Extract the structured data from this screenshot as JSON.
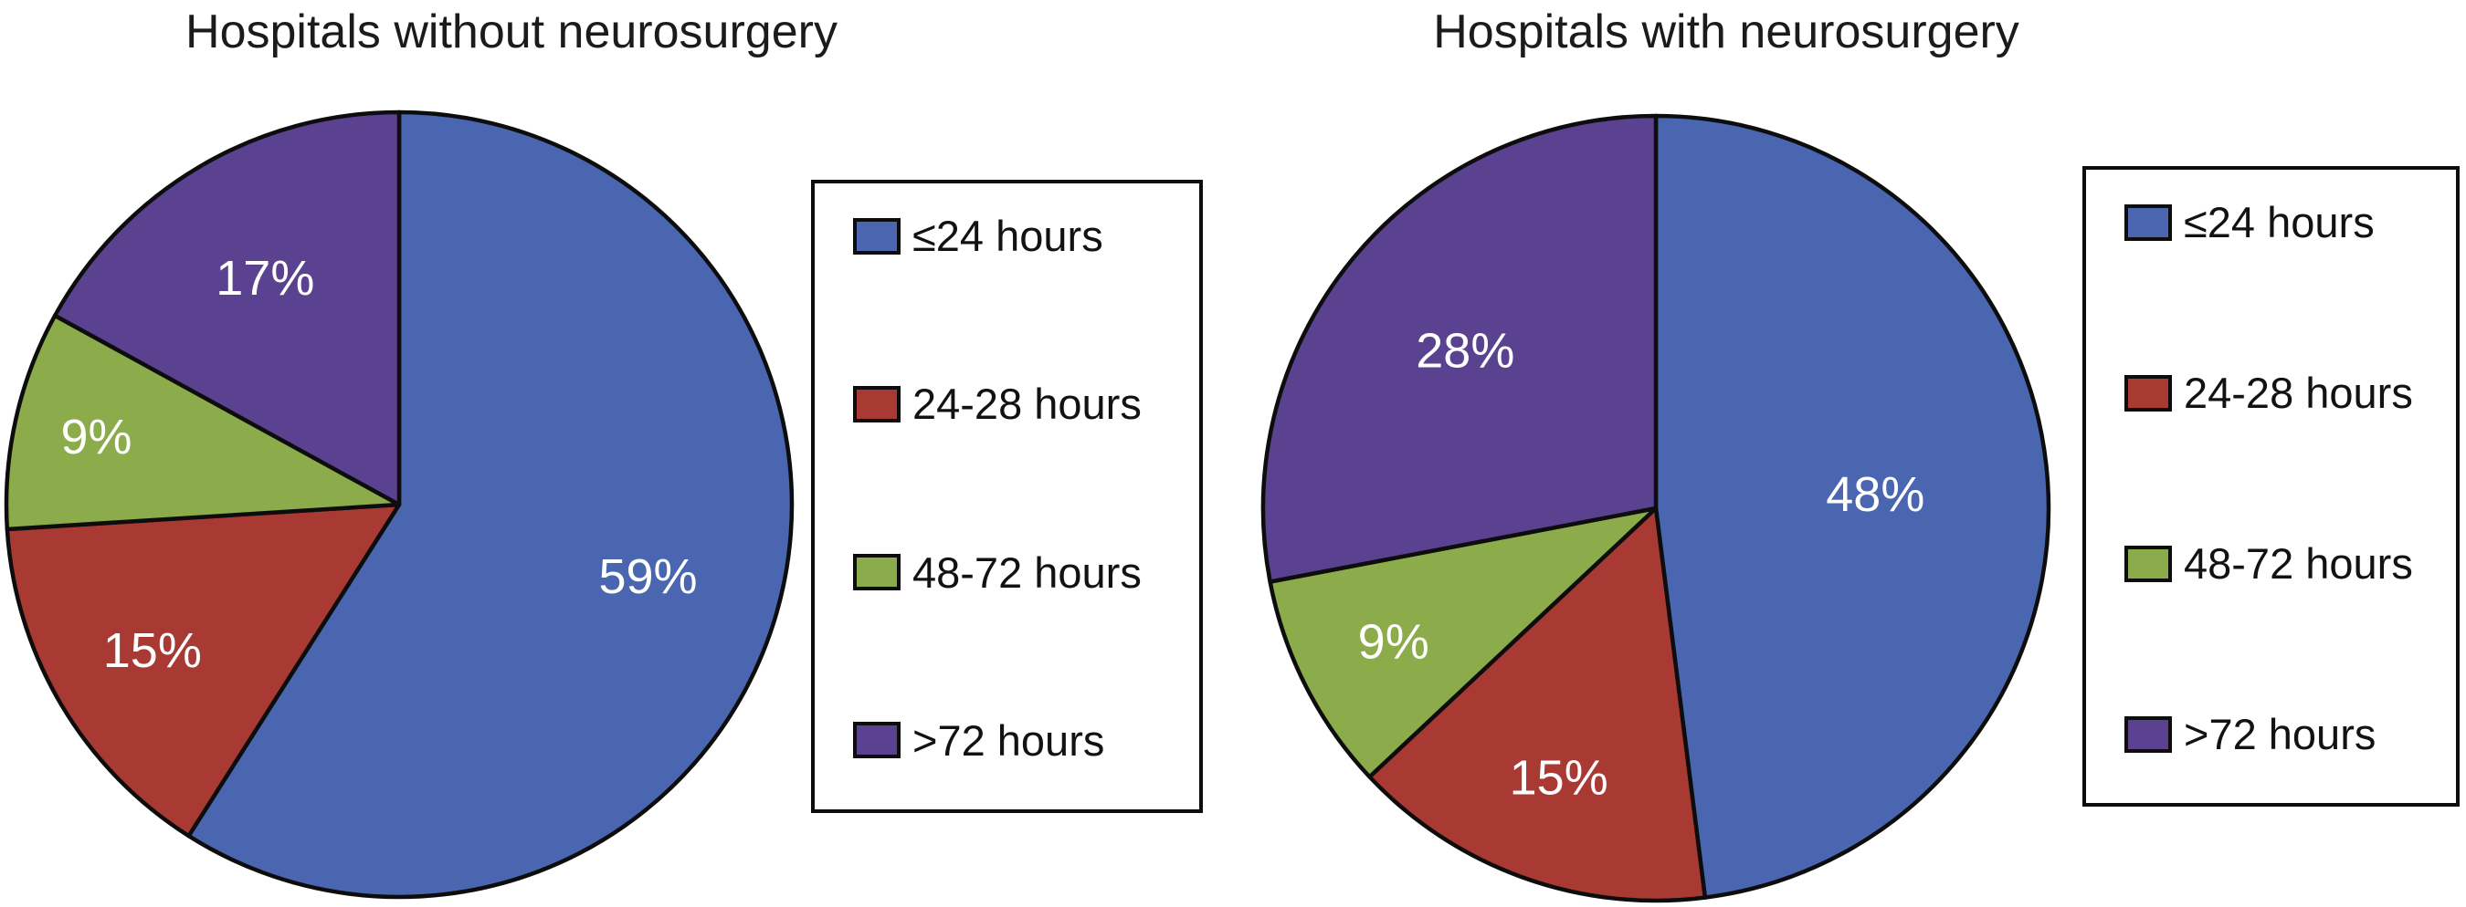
{
  "figure": {
    "background": "#ffffff"
  },
  "chart_data": [
    {
      "type": "pie",
      "title": "Hospitals without neurosurgery",
      "labels": [
        "≤24 hours",
        "24-28 hours",
        "48-72 hours",
        ">72 hours"
      ],
      "values": [
        59,
        15,
        9,
        17
      ],
      "data_labels": [
        "59%",
        "15%",
        "9%",
        "17%"
      ],
      "colors": [
        "#4a66b0",
        "#a93a33",
        "#8cab4a",
        "#5b4291"
      ],
      "data_label_color": "#ffffff",
      "stroke_color": "#0d0d0d",
      "start_angle_deg": 0,
      "direction": "clockwise",
      "legend_position": "right"
    },
    {
      "type": "pie",
      "title": "Hospitals with neurosurgery",
      "labels": [
        "≤24 hours",
        "24-28 hours",
        "48-72 hours",
        ">72 hours"
      ],
      "values": [
        48,
        15,
        9,
        28
      ],
      "data_labels": [
        "48%",
        "15%",
        "9%",
        "28%"
      ],
      "colors": [
        "#4a66b0",
        "#a93a33",
        "#8cab4a",
        "#5b4291"
      ],
      "data_label_color": "#ffffff",
      "stroke_color": "#0d0d0d",
      "start_angle_deg": 0,
      "direction": "clockwise",
      "legend_position": "right"
    }
  ]
}
